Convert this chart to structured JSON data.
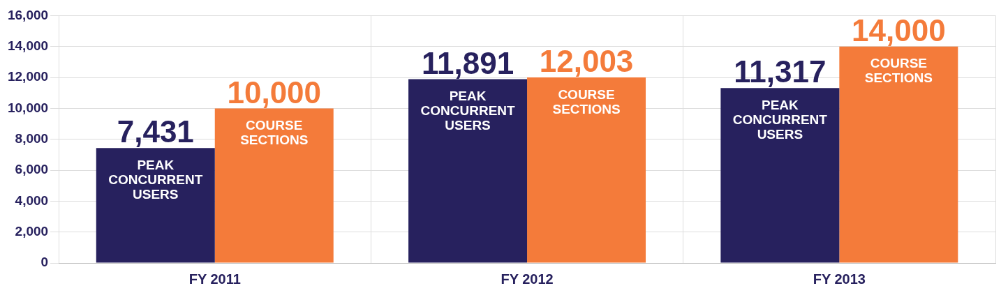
{
  "chart_data": {
    "type": "bar",
    "categories": [
      "FY 2011",
      "FY 2012",
      "FY 2013"
    ],
    "series": [
      {
        "name": "PEAK CONCURRENT USERS",
        "color": "#27215e",
        "values": [
          7431,
          11891,
          11317
        ],
        "value_labels": [
          "7,431",
          "11,891",
          "11,317"
        ]
      },
      {
        "name": "COURSE SECTIONS",
        "color": "#f47b3a",
        "values": [
          10000,
          12003,
          14000
        ],
        "value_labels": [
          "10,000",
          "12,003",
          "14,000"
        ]
      }
    ],
    "ylim": [
      0,
      16000
    ],
    "yticks": [
      {
        "value": 0,
        "label": "0"
      },
      {
        "value": 2000,
        "label": "2,000"
      },
      {
        "value": 4000,
        "label": "4,000"
      },
      {
        "value": 6000,
        "label": "6,000"
      },
      {
        "value": 8000,
        "label": "8,000"
      },
      {
        "value": 10000,
        "label": "10,000"
      },
      {
        "value": 12000,
        "label": "12,000"
      },
      {
        "value": 14000,
        "label": "14,000"
      },
      {
        "value": 16000,
        "label": "16,000"
      }
    ],
    "grid": true,
    "legend": false
  }
}
